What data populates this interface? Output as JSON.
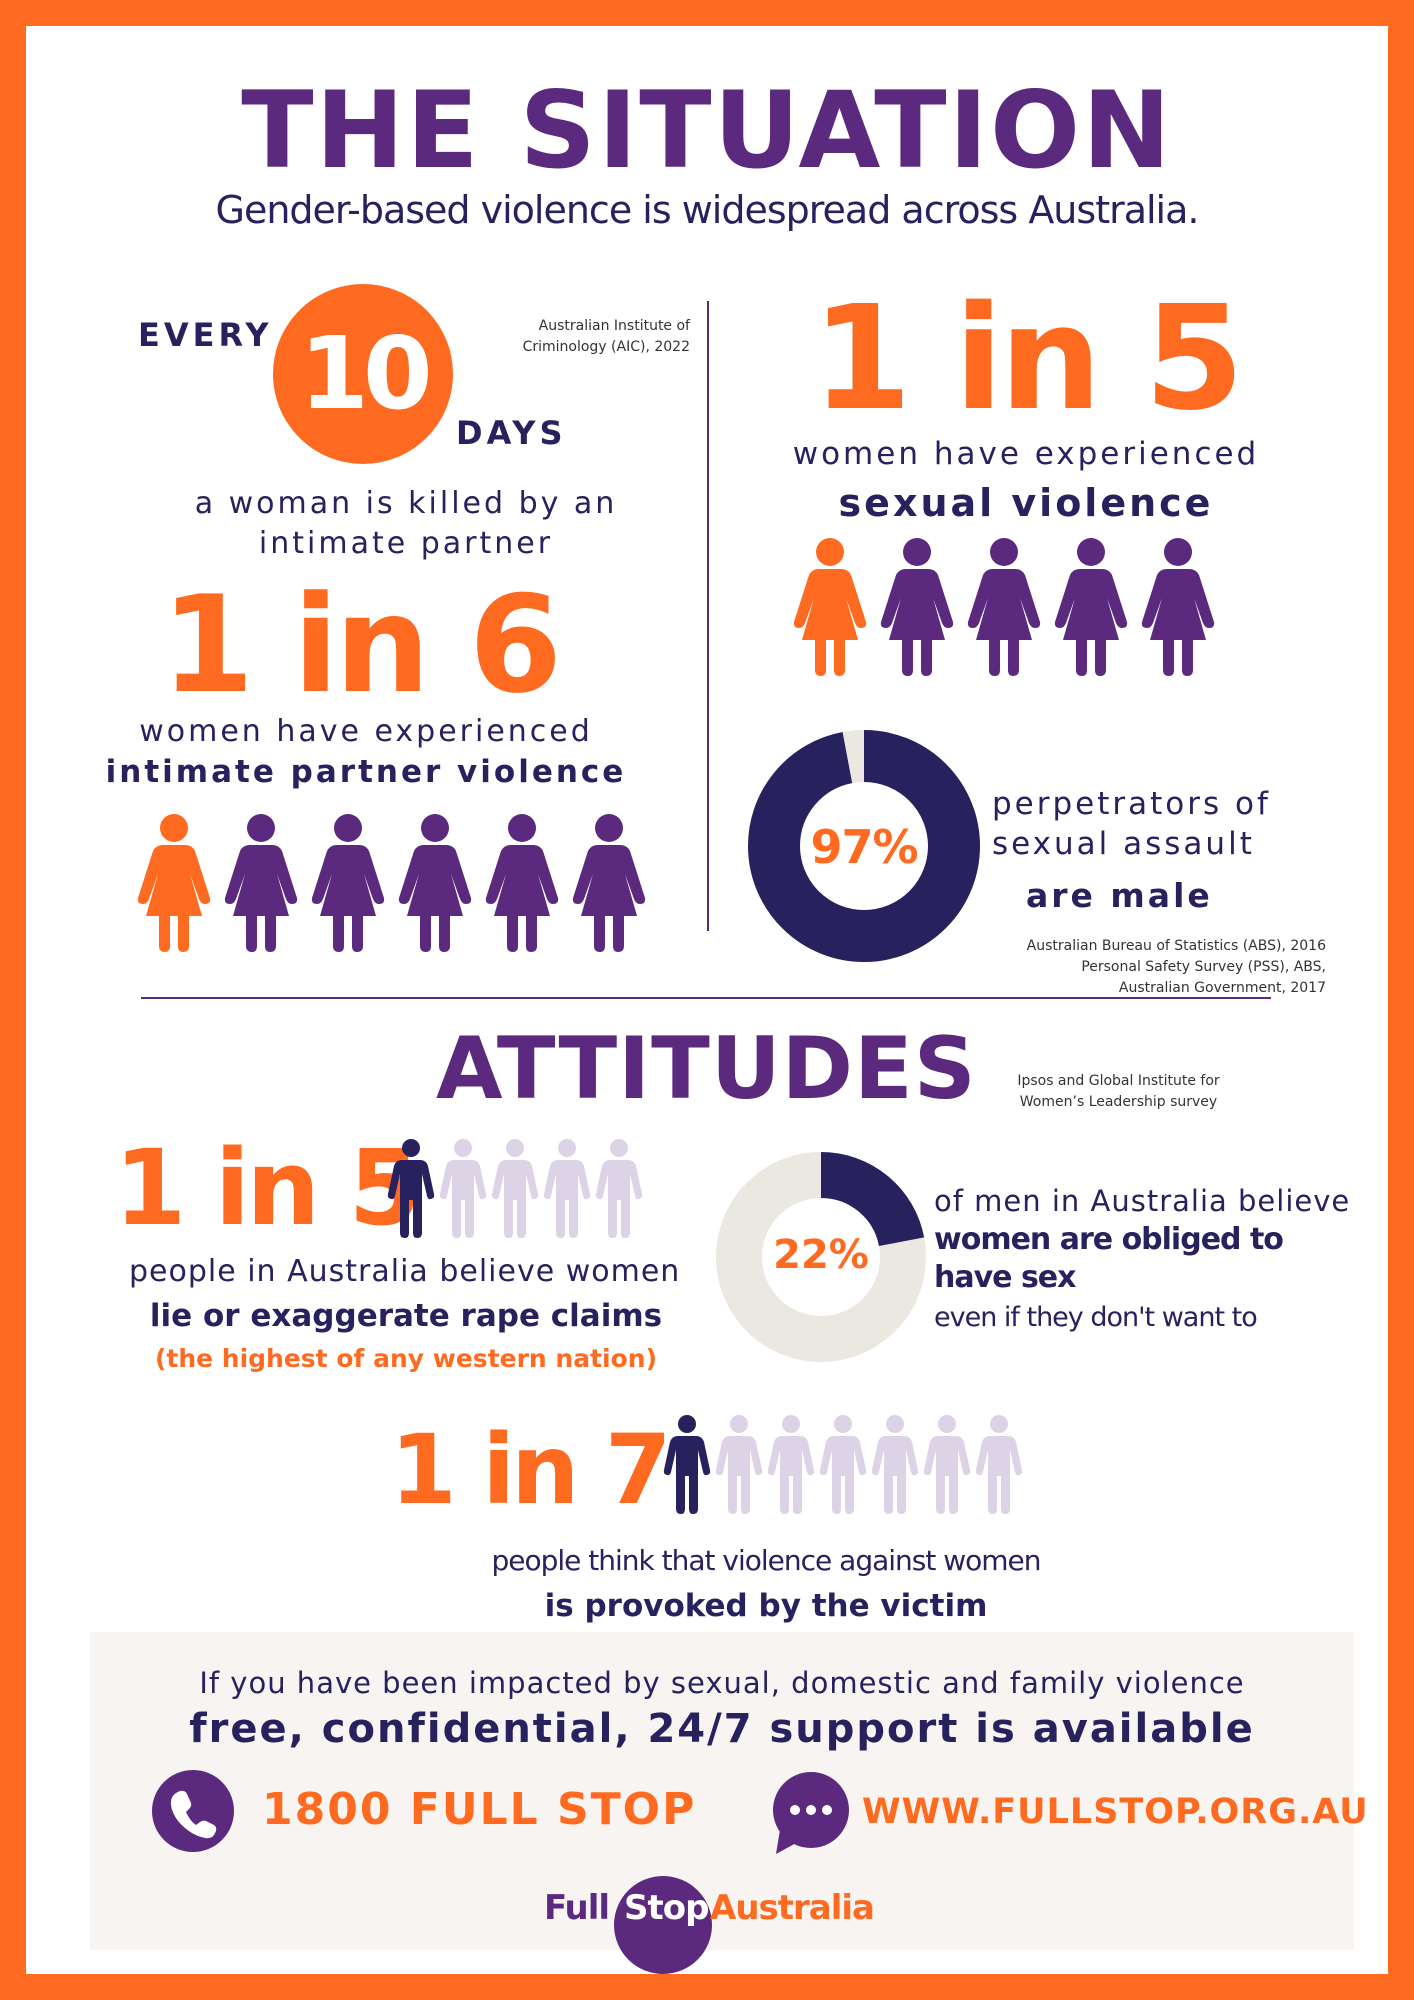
{
  "header": {
    "title": "THE SITUATION",
    "subtitle": "Gender-based violence is widespread across Australia."
  },
  "stat_10days": {
    "every": "EVERY",
    "number": "10",
    "days": "DAYS",
    "source": "Australian Institute of Criminology (AIC), 2022",
    "line1": "a woman is killed by an",
    "line2": "intimate partner"
  },
  "stat_1in6": {
    "ratio": "1 in 6",
    "line1": "women have experienced",
    "line2": "intimate partner violence",
    "highlighted": 1,
    "total": 6
  },
  "stat_1in5_sv": {
    "ratio": "1 in 5",
    "line1": "women have experienced",
    "line2": "sexual violence",
    "highlighted": 1,
    "total": 5
  },
  "stat_97": {
    "value_label": "97%",
    "value": 97,
    "line1": "perpetrators of",
    "line2": "sexual assault",
    "line3": "are male",
    "source": "Australian Bureau of Statistics (ABS), 2016 Personal Safety Survey (PSS), ABS, Australian Government, 2017"
  },
  "attitudes": {
    "title": "ATTITUDES",
    "source": "Ipsos and Global Institute for Women’s Leadership survey"
  },
  "stat_1in5_rape": {
    "ratio": "1 in 5",
    "line1": "people in Australia believe women",
    "line2": "lie or exaggerate rape claims",
    "line3": "(the highest of any western nation)",
    "highlighted": 1,
    "total": 5
  },
  "stat_22": {
    "value_label": "22%",
    "value": 22,
    "line1": "of men in Australia believe",
    "line2": "women are obliged to",
    "line3": "have sex",
    "line4": "even if they don't want to"
  },
  "stat_1in7": {
    "ratio": "1 in 7",
    "line1": "people think that violence against women",
    "line2": "is provoked by the victim",
    "highlighted": 1,
    "total": 7
  },
  "support": {
    "line1": "If you have been impacted by sexual, domestic and family violence",
    "line2": "free, confidential, 24/7 support is available",
    "phone": "1800 FULL STOP",
    "website": "WWW.FULLSTOP.ORG.AU"
  },
  "logo": {
    "part1": "Full",
    "part2": "Stop",
    "part3": "Australia"
  },
  "colors": {
    "orange": "#ff6a21",
    "purple": "#5b2a7e",
    "navy": "#27215e",
    "lilac": "#ddd3e7",
    "grey": "#ebe8e1"
  }
}
